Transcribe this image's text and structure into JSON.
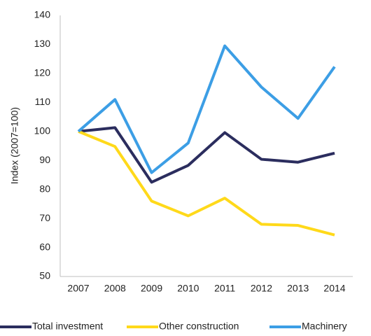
{
  "chart_data": {
    "type": "line",
    "y_label": "Index (2007=100)",
    "categories": [
      "2007",
      "2008",
      "2009",
      "2010",
      "2011",
      "2012",
      "2013",
      "2014"
    ],
    "series": [
      {
        "name": "Total investment",
        "color": "#2b2d5e",
        "values": [
          100,
          101.3,
          82.5,
          88.3,
          99.6,
          90.4,
          89.4,
          92.5
        ]
      },
      {
        "name": "Other construction",
        "color": "#ffd91a",
        "values": [
          100,
          94.8,
          76,
          70.9,
          77,
          68,
          67.6,
          64.3
        ]
      },
      {
        "name": "Machinery",
        "color": "#3c9ee5",
        "values": [
          100,
          111,
          85.8,
          96,
          129.5,
          115.3,
          104.5,
          122.3
        ]
      }
    ],
    "ylim": [
      50,
      140
    ],
    "yticks": [
      50,
      60,
      70,
      80,
      90,
      100,
      110,
      120,
      130,
      140
    ],
    "legend": "bottom"
  }
}
